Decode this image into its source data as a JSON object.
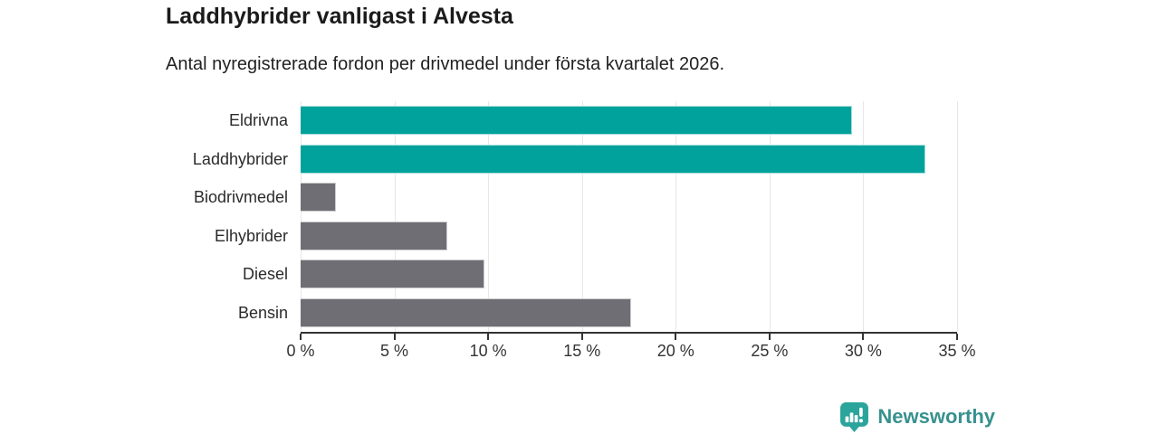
{
  "header": {
    "title": "Laddhybrider vanligast i Alvesta",
    "subtitle": "Antal nyregistrerade fordon per drivmedel under första kvartalet 2026."
  },
  "chart_data": {
    "type": "bar",
    "orientation": "horizontal",
    "title": "Laddhybrider vanligast i Alvesta",
    "subtitle": "Antal nyregistrerade fordon per drivmedel under första kvartalet 2026.",
    "categories": [
      "Eldrivna",
      "Laddhybrider",
      "Biodrivmedel",
      "Elhybrider",
      "Diesel",
      "Bensin"
    ],
    "values": [
      29.4,
      33.3,
      1.9,
      7.8,
      9.8,
      17.6
    ],
    "unit": "%",
    "highlighted": [
      true,
      true,
      false,
      false,
      false,
      false
    ],
    "xlim": [
      0,
      35
    ],
    "xticks": [
      0,
      5,
      10,
      15,
      20,
      25,
      30,
      35
    ],
    "xtick_labels": [
      "0 %",
      "5 %",
      "10 %",
      "15 %",
      "20 %",
      "25 %",
      "30 %",
      "35 %"
    ],
    "grid": true,
    "legend": false
  },
  "theme": {
    "accent_bar_color": "#00A29B",
    "muted_bar_color": "#6E6E74",
    "grid_color": "#E7E7E9",
    "axis_color": "#333333",
    "brand_color": "#37918E",
    "logo_bubble_color": "#2BA49B"
  },
  "footer": {
    "brand": "Newsworthy"
  }
}
